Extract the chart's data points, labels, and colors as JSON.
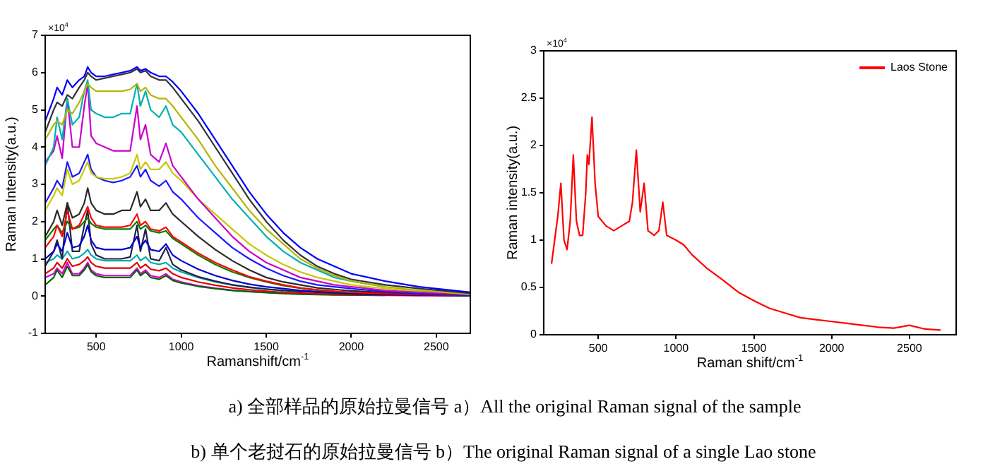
{
  "chart_data": [
    {
      "type": "line",
      "xlabel": "Ramanshift/cm$^{-1}$",
      "ylabel": "Raman Intensity(a.u.)",
      "xlim": [
        200,
        2700
      ],
      "xticks": [
        500,
        1000,
        1500,
        2000,
        2500
      ],
      "ylim": [
        -1,
        7
      ],
      "yticks": [
        -1,
        0,
        1,
        2,
        3,
        4,
        5,
        6,
        7
      ],
      "annotations": [
        "×10$^{4}$",
        "a) 全部样品的原始拉曼信号 a）All the original Raman signal of the sample"
      ],
      "x": [
        200,
        250,
        270,
        300,
        330,
        360,
        400,
        430,
        450,
        470,
        500,
        550,
        600,
        650,
        700,
        740,
        760,
        790,
        820,
        870,
        910,
        950,
        1000,
        1100,
        1200,
        1300,
        1400,
        1500,
        1600,
        1700,
        1800,
        1900,
        2000,
        2200,
        2400,
        2700
      ],
      "series": [
        {
          "color": "#0000ff",
          "values": [
            4.7,
            5.3,
            5.6,
            5.4,
            5.8,
            5.6,
            5.8,
            5.9,
            6.15,
            6.0,
            5.9,
            5.9,
            5.95,
            6.0,
            6.05,
            6.15,
            6.05,
            6.1,
            6.0,
            5.9,
            5.9,
            5.75,
            5.5,
            4.9,
            4.2,
            3.5,
            2.8,
            2.2,
            1.7,
            1.3,
            1.0,
            0.8,
            0.6,
            0.4,
            0.25,
            0.1
          ]
        },
        {
          "color": "#333333",
          "values": [
            4.4,
            5.0,
            5.2,
            5.1,
            5.4,
            5.3,
            5.6,
            5.8,
            6.0,
            5.9,
            5.8,
            5.85,
            5.9,
            5.95,
            6.0,
            6.1,
            6.0,
            6.05,
            5.9,
            5.8,
            5.8,
            5.6,
            5.3,
            4.7,
            4.0,
            3.3,
            2.6,
            2.0,
            1.5,
            1.1,
            0.8,
            0.6,
            0.45,
            0.3,
            0.2,
            0.08
          ]
        },
        {
          "color": "#b5b500",
          "values": [
            4.2,
            4.6,
            4.7,
            4.6,
            5.0,
            4.9,
            5.2,
            5.5,
            5.7,
            5.6,
            5.5,
            5.5,
            5.5,
            5.5,
            5.55,
            5.7,
            5.5,
            5.6,
            5.4,
            5.3,
            5.3,
            5.1,
            4.8,
            4.2,
            3.5,
            2.9,
            2.3,
            1.8,
            1.4,
            1.0,
            0.75,
            0.55,
            0.4,
            0.25,
            0.15,
            0.05
          ]
        },
        {
          "color": "#00b0b0",
          "values": [
            3.5,
            4.0,
            4.8,
            4.2,
            5.3,
            4.6,
            4.8,
            5.5,
            5.8,
            5.0,
            4.9,
            4.8,
            4.8,
            4.9,
            4.9,
            5.7,
            5.1,
            5.5,
            5.0,
            4.8,
            5.1,
            4.6,
            4.4,
            3.8,
            3.2,
            2.6,
            2.1,
            1.6,
            1.2,
            0.9,
            0.7,
            0.5,
            0.4,
            0.25,
            null,
            null
          ]
        },
        {
          "color": "#cc00cc",
          "values": [
            3.6,
            3.9,
            4.3,
            3.7,
            5.3,
            4.0,
            4.0,
            5.1,
            5.7,
            4.3,
            4.1,
            4.0,
            3.9,
            3.9,
            3.9,
            5.1,
            4.2,
            4.6,
            3.8,
            3.6,
            4.1,
            3.5,
            3.2,
            2.6,
            2.1,
            1.6,
            1.2,
            0.9,
            0.7,
            0.5,
            0.4,
            0.3,
            0.25,
            0.15,
            0.1,
            0.05
          ]
        },
        {
          "color": "#c8c800",
          "values": [
            2.3,
            2.7,
            2.9,
            2.7,
            3.4,
            3.0,
            3.1,
            3.4,
            3.6,
            3.3,
            3.2,
            3.15,
            3.15,
            3.2,
            3.3,
            3.8,
            3.4,
            3.6,
            3.4,
            3.4,
            3.6,
            3.3,
            3.1,
            2.6,
            2.2,
            1.8,
            1.4,
            1.1,
            0.85,
            0.65,
            0.5,
            0.4,
            0.3,
            0.2,
            0.12,
            0.05
          ]
        },
        {
          "color": "#1a1aff",
          "values": [
            2.5,
            2.9,
            3.1,
            2.9,
            3.6,
            3.2,
            3.3,
            3.6,
            3.8,
            3.4,
            3.2,
            3.1,
            3.05,
            3.1,
            3.2,
            3.5,
            3.2,
            3.4,
            3.1,
            2.95,
            3.1,
            2.8,
            2.6,
            2.1,
            1.7,
            1.3,
            1.0,
            0.75,
            0.55,
            0.4,
            0.3,
            0.25,
            0.2,
            0.12,
            0.08,
            0.03
          ]
        },
        {
          "color": "#2a2a2a",
          "values": [
            1.6,
            2.0,
            2.3,
            1.9,
            2.5,
            2.1,
            2.2,
            2.5,
            2.9,
            2.5,
            2.3,
            2.2,
            2.2,
            2.3,
            2.3,
            2.8,
            2.4,
            2.6,
            2.3,
            2.3,
            2.5,
            2.2,
            2.0,
            1.6,
            1.25,
            0.95,
            0.7,
            0.5,
            0.38,
            0.3,
            0.22,
            0.18,
            0.14,
            0.1,
            0.06,
            0.02
          ]
        },
        {
          "color": "#ff0000",
          "values": [
            1.3,
            1.6,
            1.9,
            1.6,
            2.3,
            1.8,
            1.9,
            2.2,
            2.4,
            2.1,
            1.9,
            1.85,
            1.85,
            1.85,
            1.9,
            2.2,
            1.9,
            2.0,
            1.8,
            1.75,
            1.85,
            1.6,
            1.45,
            1.15,
            0.9,
            0.7,
            0.52,
            0.4,
            0.3,
            0.22,
            0.17,
            0.13,
            0.1,
            0.07,
            0.04,
            0.02
          ]
        },
        {
          "color": "#008000",
          "values": [
            1.5,
            1.8,
            1.9,
            1.7,
            2.0,
            1.8,
            1.85,
            2.0,
            2.1,
            1.95,
            1.85,
            1.8,
            1.8,
            1.8,
            1.8,
            2.0,
            1.8,
            1.9,
            1.75,
            1.7,
            1.75,
            1.55,
            1.4,
            1.1,
            0.85,
            0.65,
            0.5,
            0.38,
            0.28,
            0.21,
            0.16,
            0.12,
            0.1,
            null,
            null,
            null
          ]
        },
        {
          "color": "#0000cc",
          "values": [
            1.0,
            1.2,
            1.4,
            1.2,
            1.7,
            1.3,
            1.35,
            1.6,
            1.9,
            1.5,
            1.3,
            1.25,
            1.25,
            1.25,
            1.3,
            1.6,
            1.3,
            1.5,
            1.25,
            1.2,
            1.4,
            1.1,
            0.95,
            0.72,
            0.55,
            0.42,
            0.32,
            0.25,
            0.2,
            0.15,
            0.12,
            0.1,
            0.08,
            0.05,
            0.03,
            0.01
          ]
        },
        {
          "color": "#222244",
          "values": [
            0.8,
            1.2,
            1.5,
            1.0,
            2.5,
            1.2,
            1.2,
            1.9,
            2.3,
            1.4,
            1.1,
            1.0,
            1.0,
            1.0,
            1.05,
            1.9,
            1.2,
            1.8,
            1.0,
            0.95,
            1.3,
            0.85,
            0.7,
            0.52,
            0.4,
            0.3,
            0.24,
            0.19,
            0.15,
            0.12,
            0.1,
            0.08,
            0.06,
            0.04,
            0.03,
            0.01
          ]
        },
        {
          "color": "#00aaaa",
          "values": [
            0.9,
            1.0,
            1.1,
            1.0,
            1.2,
            1.0,
            1.05,
            1.15,
            1.25,
            1.1,
            1.0,
            0.95,
            0.95,
            0.95,
            0.95,
            1.1,
            0.95,
            1.05,
            0.9,
            0.85,
            0.9,
            0.75,
            0.65,
            0.5,
            0.38,
            0.3,
            0.23,
            0.18,
            0.14,
            null,
            null,
            null,
            null,
            null,
            null,
            null
          ]
        },
        {
          "color": "#e00000",
          "values": [
            0.6,
            0.75,
            0.9,
            0.75,
            1.0,
            0.8,
            0.85,
            0.95,
            1.05,
            0.9,
            0.8,
            0.75,
            0.75,
            0.75,
            0.75,
            0.9,
            0.75,
            0.85,
            0.72,
            0.68,
            0.75,
            0.6,
            0.5,
            0.38,
            0.29,
            0.22,
            0.17,
            0.13,
            0.1,
            0.08,
            0.06,
            0.05,
            0.04,
            0.03,
            0.02,
            0.01
          ]
        },
        {
          "color": "#006600",
          "values": [
            0.3,
            0.5,
            0.7,
            0.5,
            0.8,
            0.55,
            0.55,
            0.7,
            0.85,
            0.65,
            0.55,
            0.5,
            0.5,
            0.5,
            0.5,
            0.7,
            0.55,
            0.65,
            0.5,
            0.45,
            0.55,
            0.42,
            0.35,
            0.26,
            0.2,
            0.15,
            0.12,
            0.09,
            0.07,
            0.05,
            0.04,
            0.03,
            0.03,
            0.02,
            null,
            null
          ]
        },
        {
          "color": "#dd00dd",
          "values": [
            0.5,
            0.6,
            0.75,
            0.6,
            0.9,
            0.6,
            0.6,
            0.75,
            0.9,
            0.7,
            0.6,
            0.55,
            0.55,
            0.55,
            0.55,
            0.75,
            0.6,
            0.7,
            0.55,
            0.5,
            0.6,
            0.45,
            0.38,
            0.28,
            0.21,
            0.16,
            0.12,
            0.1,
            0.08,
            0.06,
            0.05,
            0.04,
            0.03,
            0.02,
            0.01,
            0.01
          ]
        }
      ]
    },
    {
      "type": "line",
      "xlabel": "Raman shift/cm$^{-1}$",
      "ylabel": "Raman intensity(a.u.)",
      "xlim": [
        150,
        2800
      ],
      "xticks": [
        500,
        1000,
        1500,
        2000,
        2500
      ],
      "ylim": [
        0,
        3
      ],
      "yticks": [
        0,
        0.5,
        1,
        1.5,
        2,
        2.5,
        3
      ],
      "legend": "top right",
      "annotations": [
        "×10$^{4}$",
        "b) 单个老挝石的原始拉曼信号 b）The original Raman signal of a single Lao stone"
      ],
      "series": [
        {
          "name": "Laos Stone",
          "color": "#ff0000",
          "x": [
            200,
            220,
            240,
            260,
            280,
            300,
            320,
            340,
            360,
            380,
            400,
            420,
            430,
            440,
            460,
            480,
            500,
            550,
            600,
            650,
            700,
            720,
            745,
            770,
            795,
            820,
            860,
            890,
            915,
            940,
            1000,
            1050,
            1100,
            1200,
            1300,
            1400,
            1500,
            1600,
            1700,
            1800,
            1900,
            2000,
            2100,
            2200,
            2300,
            2400,
            2500,
            2600,
            2700
          ],
          "values": [
            0.75,
            1.0,
            1.25,
            1.6,
            1.0,
            0.9,
            1.2,
            1.9,
            1.2,
            1.05,
            1.05,
            1.5,
            1.9,
            1.8,
            2.3,
            1.6,
            1.25,
            1.15,
            1.1,
            1.15,
            1.2,
            1.4,
            1.95,
            1.3,
            1.6,
            1.1,
            1.05,
            1.1,
            1.4,
            1.05,
            1.0,
            0.95,
            0.85,
            0.7,
            0.58,
            0.45,
            0.36,
            0.28,
            0.23,
            0.18,
            0.16,
            0.14,
            0.12,
            0.1,
            0.08,
            0.07,
            0.1,
            0.06,
            0.05
          ]
        }
      ]
    }
  ]
}
